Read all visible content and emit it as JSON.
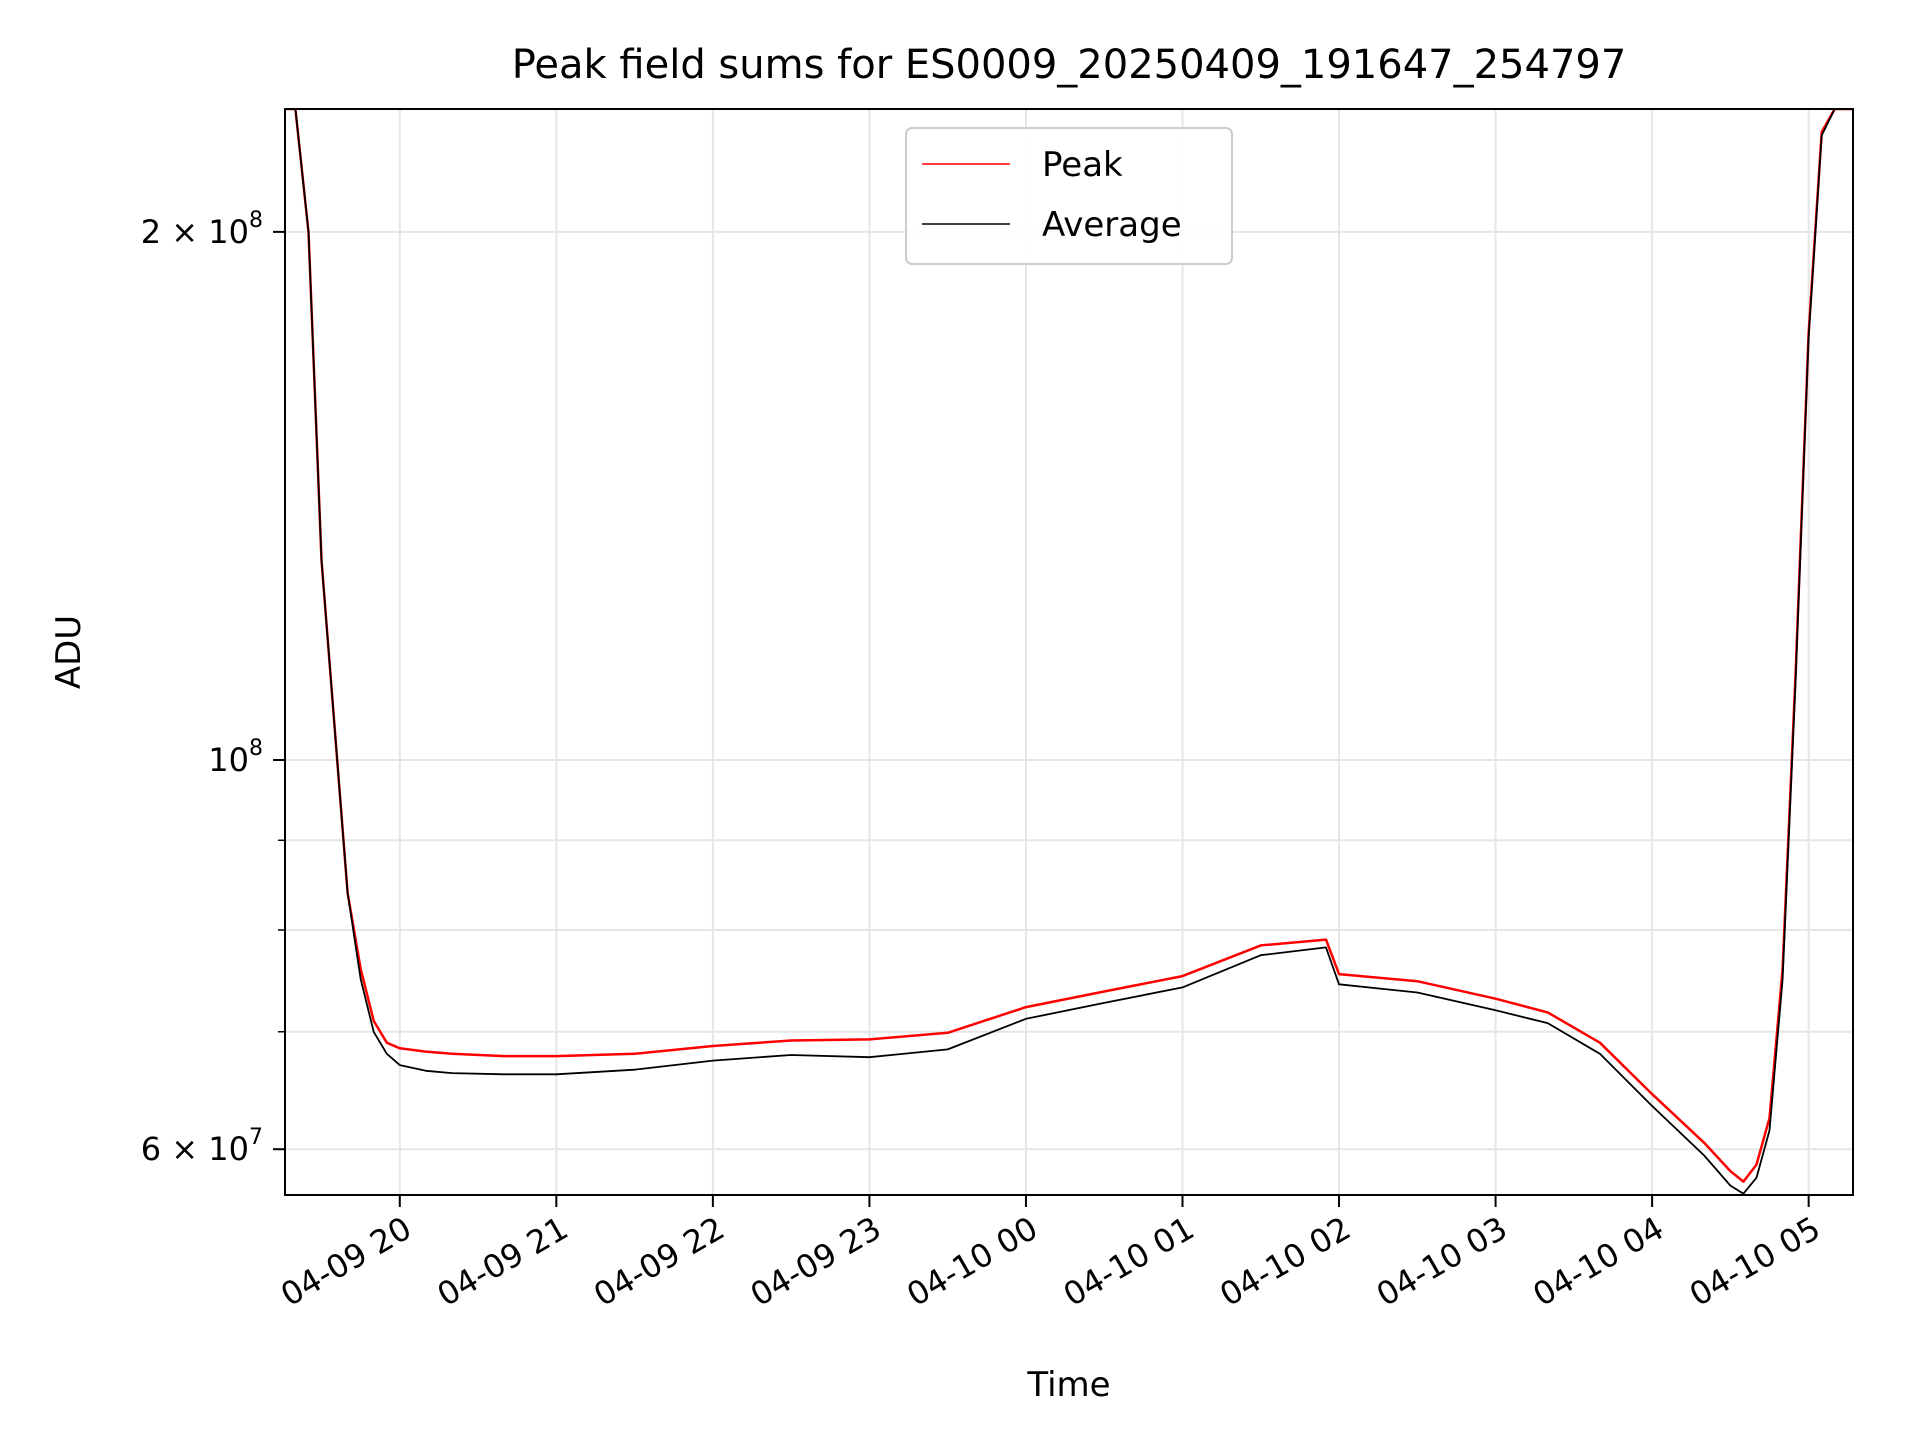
{
  "chart_data": {
    "type": "line",
    "title": "Peak field sums for ES0009_20250409_191647_254797",
    "xlabel": "Time",
    "ylabel": "ADU",
    "yscale": "log",
    "ylim": [
      56500000,
      235000000
    ],
    "xlim": [
      "2025-04-09 19:16",
      "2025-04-10 05:17"
    ],
    "grid": true,
    "legend_position": "upper center",
    "x_ticks": [
      "04-09 20",
      "04-09 21",
      "04-09 22",
      "04-09 23",
      "04-10 00",
      "04-10 01",
      "04-10 02",
      "04-10 03",
      "04-10 04",
      "04-10 05"
    ],
    "y_ticks": [
      {
        "value": 60000000,
        "mantissa": "6",
        "exponent": "7"
      },
      {
        "value": 100000000,
        "mantissa": "",
        "exponent": "8"
      },
      {
        "value": 200000000,
        "mantissa": "2",
        "exponent": "8"
      }
    ],
    "y_minor_ticks": [
      70000000,
      80000000,
      90000000
    ],
    "x": [
      "2025-04-09 19:16",
      "2025-04-09 19:20",
      "2025-04-09 19:25",
      "2025-04-09 19:30",
      "2025-04-09 19:40",
      "2025-04-09 19:45",
      "2025-04-09 19:50",
      "2025-04-09 19:55",
      "2025-04-09 20:00",
      "2025-04-09 20:10",
      "2025-04-09 20:20",
      "2025-04-09 20:40",
      "2025-04-09 21:00",
      "2025-04-09 21:30",
      "2025-04-09 22:00",
      "2025-04-09 22:30",
      "2025-04-09 23:00",
      "2025-04-09 23:30",
      "2025-04-10 00:00",
      "2025-04-10 00:30",
      "2025-04-10 01:00",
      "2025-04-10 01:30",
      "2025-04-10 01:55",
      "2025-04-10 02:00",
      "2025-04-10 02:30",
      "2025-04-10 03:00",
      "2025-04-10 03:20",
      "2025-04-10 03:40",
      "2025-04-10 04:00",
      "2025-04-10 04:20",
      "2025-04-10 04:30",
      "2025-04-10 04:35",
      "2025-04-10 04:40",
      "2025-04-10 04:45",
      "2025-04-10 04:50",
      "2025-04-10 04:55",
      "2025-04-10 05:00",
      "2025-04-10 05:05",
      "2025-04-10 05:10",
      "2025-04-10 05:17"
    ],
    "series": [
      {
        "name": "Peak",
        "color": "#ff0000",
        "values": [
          235000000,
          235000000,
          200000000,
          130000000,
          84000000,
          76000000,
          71000000,
          69000000,
          68500000,
          68200000,
          68000000,
          67800000,
          67800000,
          68000000,
          68700000,
          69200000,
          69300000,
          69900000,
          72300000,
          73800000,
          75300000,
          78400000,
          79000000,
          75500000,
          74800000,
          73100000,
          71800000,
          69000000,
          64500000,
          60500000,
          58300000,
          57500000,
          58800000,
          62500000,
          76000000,
          112000000,
          175000000,
          228000000,
          235000000,
          235000000
        ]
      },
      {
        "name": "Average",
        "color": "#000000",
        "values": [
          235000000,
          235000000,
          200000000,
          130000000,
          84000000,
          75000000,
          70000000,
          68000000,
          67000000,
          66500000,
          66300000,
          66200000,
          66200000,
          66600000,
          67400000,
          67900000,
          67700000,
          68400000,
          71200000,
          72700000,
          74200000,
          77400000,
          78200000,
          74500000,
          73700000,
          72000000,
          70800000,
          68000000,
          63500000,
          59500000,
          57200000,
          56600000,
          57800000,
          61500000,
          75000000,
          111000000,
          174000000,
          227000000,
          235000000,
          235000000
        ]
      }
    ]
  }
}
